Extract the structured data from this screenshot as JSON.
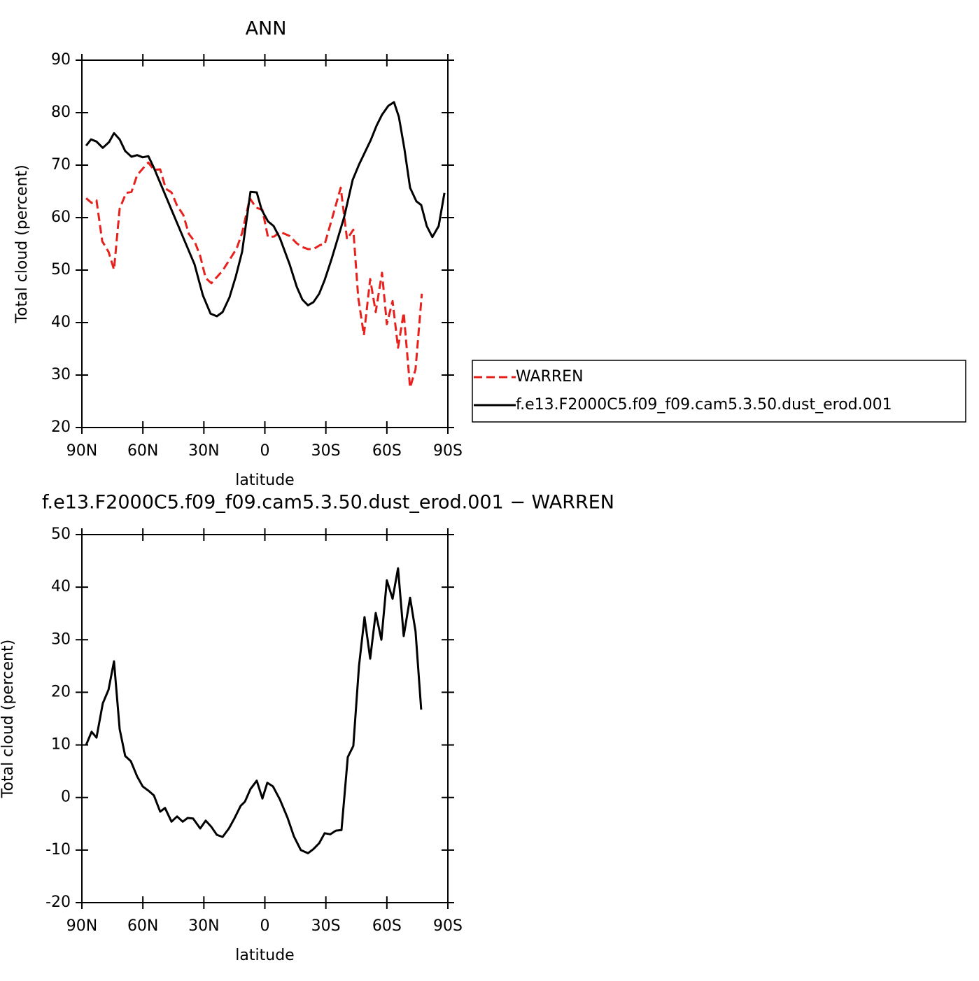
{
  "chart_data": [
    {
      "type": "line",
      "title": "ANN",
      "xlabel": "latitude",
      "ylabel": "Total cloud (percent)",
      "xlim": [
        90,
        -90
      ],
      "xticks": [
        {
          "value": 90,
          "label": "90N"
        },
        {
          "value": 60,
          "label": "60N"
        },
        {
          "value": 30,
          "label": "30N"
        },
        0,
        {
          "value": -30,
          "label": "30S"
        },
        {
          "value": -60,
          "label": "60S"
        },
        {
          "value": -90,
          "label": "90S"
        }
      ],
      "ylim": [
        20,
        90
      ],
      "yticks": [
        20,
        30,
        40,
        50,
        60,
        70,
        80,
        90
      ],
      "legend": "right",
      "series": [
        {
          "name": "WARREN",
          "color": "#e8201c",
          "style": "dashed",
          "x": [
            87.9,
            85.2,
            82.8,
            80,
            76.9,
            74.2,
            71.4,
            68.3,
            65.6,
            62.8,
            59.7,
            57.3,
            54.6,
            51.5,
            48.7,
            45.9,
            43.2,
            40.1,
            37.4,
            34.6,
            31.8,
            29.1,
            26.3,
            20.8,
            13.9,
            11.2,
            7.4,
            4.3,
            1.2,
            -1.5,
            -4.6,
            -7.4,
            -12.2,
            -15.7,
            -18.4,
            -21.2,
            -23.9,
            -27.3,
            -29.4,
            -32.8,
            -37.3,
            -40.4,
            -43.5,
            -45.9,
            -48.7,
            -51.8,
            -54.5,
            -57.6,
            -60,
            -62.8,
            -65.5,
            -68.3,
            -71.4,
            -74.1,
            -77.2
          ],
          "values": [
            63.7,
            62.8,
            63.3,
            55.5,
            53.5,
            50.1,
            61.7,
            64.7,
            64.9,
            68.1,
            69.5,
            70.5,
            69.1,
            69.2,
            65.5,
            64.8,
            62.3,
            60.5,
            56.9,
            55.5,
            52.7,
            48.5,
            47.5,
            49.9,
            54.1,
            57.1,
            63.7,
            61.9,
            61.5,
            56.3,
            56.4,
            57.3,
            56.5,
            55.1,
            54.4,
            54,
            54,
            54.8,
            54.9,
            59.5,
            65.7,
            55.9,
            57.7,
            44.8,
            37.6,
            48.3,
            42,
            49.5,
            39.7,
            44.1,
            35.2,
            41.9,
            27.6,
            31.1,
            45.5
          ]
        },
        {
          "name": "f.e13.F2000C5.f09_f09.cam5.3.50.dust_erod.001",
          "color": "#000000",
          "style": "solid",
          "x": [
            87.9,
            85.5,
            82.8,
            79.7,
            76.6,
            74.2,
            71.4,
            68.7,
            65.6,
            62.8,
            60.1,
            57.3,
            54.6,
            45.6,
            34.6,
            30.5,
            26.7,
            23.6,
            20.8,
            17.4,
            14.3,
            11.2,
            7.1,
            4,
            1.6,
            -1.5,
            -4.3,
            -7.4,
            -12.2,
            -15.7,
            -18.4,
            -21.2,
            -23.9,
            -26.7,
            -29.4,
            -32.8,
            -39,
            -43.2,
            -46.3,
            -52.1,
            -54.9,
            -57.6,
            -60.7,
            -63.5,
            -65.9,
            -68.6,
            -71.4,
            -74.5,
            -76.9,
            -79.6,
            -82.4,
            -85.5,
            -88.3
          ],
          "values": [
            73.7,
            74.9,
            74.5,
            73.3,
            74.4,
            76.1,
            74.9,
            72.7,
            71.6,
            71.9,
            71.5,
            71.7,
            69.5,
            61.2,
            51.1,
            45.2,
            41.7,
            41.2,
            42,
            44.8,
            48.8,
            53.5,
            64.9,
            64.8,
            61.5,
            59.3,
            58.4,
            56.1,
            51.1,
            46.8,
            44.4,
            43.3,
            43.9,
            45.5,
            48.1,
            52.1,
            60.1,
            67.2,
            70.1,
            74.8,
            77.5,
            79.6,
            81.3,
            82,
            79.2,
            73.2,
            65.7,
            63.1,
            62.4,
            58.4,
            56.3,
            58.4,
            64.7
          ]
        }
      ]
    },
    {
      "type": "line",
      "title": "f.e13.F2000C5.f09_f09.cam5.3.50.dust_erod.001 − WARREN",
      "xlabel": "latitude",
      "ylabel": "Total cloud (percent)",
      "xlim": [
        90,
        -90
      ],
      "xticks": [
        {
          "value": 90,
          "label": "90N"
        },
        {
          "value": 60,
          "label": "60N"
        },
        {
          "value": 30,
          "label": "30N"
        },
        0,
        {
          "value": -30,
          "label": "30S"
        },
        {
          "value": -60,
          "label": "60S"
        },
        {
          "value": -90,
          "label": "90S"
        }
      ],
      "ylim": [
        -20,
        50
      ],
      "yticks": [
        -20,
        -10,
        0,
        10,
        20,
        30,
        40,
        50
      ],
      "series": [
        {
          "color": "#000000",
          "style": "solid",
          "x": [
            87.9,
            85.2,
            82.8,
            79.7,
            76.9,
            74.2,
            71.4,
            68.7,
            65.9,
            62.8,
            60.1,
            57.3,
            54.6,
            51.5,
            49.1,
            45.9,
            43.2,
            40.4,
            38,
            35.3,
            31.8,
            29.1,
            26.3,
            23.6,
            20.8,
            17.7,
            15,
            11.9,
            9.8,
            7.1,
            4,
            1.2,
            -1.2,
            -4,
            -7.4,
            -11.2,
            -14.3,
            -17.7,
            -21.2,
            -23.9,
            -26.7,
            -29.4,
            -32.2,
            -34.9,
            -37.7,
            -40.8,
            -43.5,
            -46.3,
            -49,
            -51.8,
            -54.5,
            -57.3,
            -60,
            -62.8,
            -65.5,
            -68.3,
            -71.4,
            -74.1,
            -76.9
          ],
          "values": [
            10,
            12.5,
            11.4,
            17.9,
            20.5,
            25.9,
            13,
            7.9,
            6.9,
            4,
            2.1,
            1.3,
            0.4,
            -2.7,
            -2,
            -4.6,
            -3.6,
            -4.6,
            -3.9,
            -4,
            -5.9,
            -4.4,
            -5.6,
            -7.1,
            -7.5,
            -5.9,
            -4,
            -1.6,
            -0.8,
            1.6,
            3.2,
            -0.2,
            2.8,
            2.1,
            -0.4,
            -3.9,
            -7.4,
            -10,
            -10.6,
            -9.8,
            -8.7,
            -6.8,
            -7,
            -6.3,
            -6.2,
            7.7,
            9.8,
            25,
            34.3,
            26.4,
            35.1,
            30,
            41.3,
            37.8,
            43.6,
            30.7,
            38,
            31.6,
            16.7
          ]
        }
      ]
    }
  ]
}
